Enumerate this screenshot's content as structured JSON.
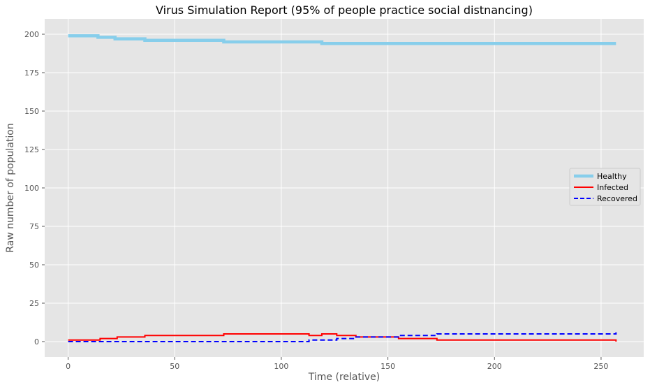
{
  "chart_data": {
    "type": "line",
    "title": "Virus Simulation Report (95% of people practice social distnancing)",
    "xlabel": "Time (relative)",
    "ylabel": "Raw number of population",
    "xlim": [
      -11,
      270
    ],
    "ylim": [
      -10,
      210
    ],
    "xticks": [
      0,
      50,
      100,
      150,
      200,
      250
    ],
    "yticks": [
      0,
      25,
      50,
      75,
      100,
      125,
      150,
      175,
      200
    ],
    "grid": true,
    "legend_position": "center-right",
    "series": [
      {
        "name": "Healthy",
        "color": "#87ceeb",
        "style": "solid",
        "step": true,
        "x": [
          0,
          14,
          22,
          36,
          73,
          119,
          257
        ],
        "y": [
          199,
          198,
          197,
          196,
          195,
          194,
          194
        ]
      },
      {
        "name": "Infected",
        "color": "#ff0000",
        "style": "solid",
        "step": true,
        "x": [
          0,
          15,
          23,
          36,
          73,
          113,
          119,
          126,
          135,
          145,
          155,
          173,
          257
        ],
        "y": [
          1,
          2,
          3,
          4,
          5,
          4,
          5,
          4,
          3,
          3,
          2,
          1,
          0
        ]
      },
      {
        "name": "Recovered",
        "color": "#0000ff",
        "style": "dashed",
        "step": true,
        "x": [
          0,
          113,
          126,
          135,
          155,
          173,
          257
        ],
        "y": [
          0,
          1,
          2,
          3,
          4,
          5,
          6
        ]
      }
    ]
  }
}
